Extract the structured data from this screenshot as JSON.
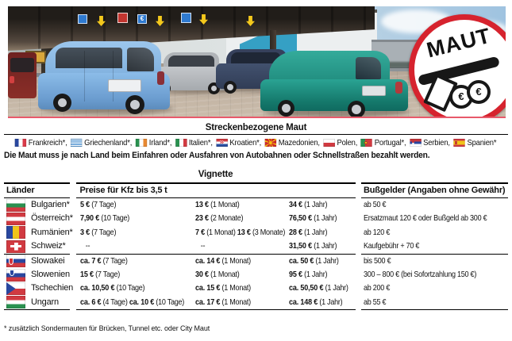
{
  "badge": {
    "label": "MAUT",
    "coin_symbol": "€"
  },
  "photo": {
    "sign_euro": "€"
  },
  "route_toll": {
    "heading": "Streckenbezogene Maut",
    "countries": [
      {
        "flag": "fr",
        "label": "Frankreich*"
      },
      {
        "flag": "gr",
        "label": "Griechenland*"
      },
      {
        "flag": "ie",
        "label": "Irland*"
      },
      {
        "flag": "it",
        "label": "Italien*"
      },
      {
        "flag": "hr",
        "label": "Kroatien*"
      },
      {
        "flag": "mk",
        "label": "Mazedonien"
      },
      {
        "flag": "pl",
        "label": "Polen"
      },
      {
        "flag": "pt",
        "label": "Portugal*"
      },
      {
        "flag": "rs",
        "label": "Serbien"
      },
      {
        "flag": "es",
        "label": "Spanien*"
      }
    ],
    "note": "Die Maut muss je nach Land beim Einfahren oder Ausfahren von Autobahnen oder Schnellstraßen bezahlt werden."
  },
  "vignette_table": {
    "heading": "Vignette",
    "columns": {
      "laender": "Länder",
      "preise": "Preise für Kfz bis 3,5 t",
      "bussgelder": "Bußgelder (Angaben ohne Gewähr)"
    },
    "groups": [
      [
        {
          "flag": "bg",
          "country": "Bulgarien*",
          "prices": [
            [
              {
                "b": "5 €",
                "r": "(7 Tage)"
              }
            ],
            [
              {
                "b": "13 €",
                "r": "(1 Monat)"
              }
            ],
            [
              {
                "b": "34 €",
                "r": "(1 Jahr)"
              }
            ]
          ],
          "fine": "ab 50 €"
        },
        {
          "flag": "at",
          "country": "Österreich*",
          "prices": [
            [
              {
                "b": "7,90 €",
                "r": "(10 Tage)"
              }
            ],
            [
              {
                "b": "23 €",
                "r": "(2 Monate)"
              }
            ],
            [
              {
                "b": "76,50 €",
                "r": "(1 Jahr)"
              }
            ]
          ],
          "fine": "Ersatzmaut 120 €  oder Bußgeld ab 300 €"
        },
        {
          "flag": "ro",
          "country": "Rumänien*",
          "prices": [
            [
              {
                "b": "3 €",
                "r": "(7 Tage)"
              }
            ],
            [
              {
                "b": "7 €",
                "r": "(1 Monat)"
              },
              {
                "b": "13 €",
                "r": "(3 Monate)"
              }
            ],
            [
              {
                "b": "28 €",
                "r": "(1 Jahr)"
              }
            ]
          ],
          "fine": "ab 120 €"
        },
        {
          "flag": "ch",
          "country": "Schweiz*",
          "prices": [
            [
              {
                "b": "",
                "r": "   --"
              }
            ],
            [
              {
                "b": "",
                "r": "   --"
              }
            ],
            [
              {
                "b": "31,50 €",
                "r": "(1 Jahr)"
              }
            ]
          ],
          "fine": "Kaufgebühr + 70 €"
        }
      ],
      [
        {
          "flag": "sk",
          "country": "Slowakei",
          "prices": [
            [
              {
                "b": "ca. 7 €",
                "r": "(7 Tage)"
              }
            ],
            [
              {
                "b": "ca. 14 €",
                "r": "(1 Monat)"
              }
            ],
            [
              {
                "b": "ca. 50 €",
                "r": "(1 Jahr)"
              }
            ]
          ],
          "fine": "bis 500 €"
        },
        {
          "flag": "si",
          "country": "Slowenien",
          "prices": [
            [
              {
                "b": "15 €",
                "r": "(7 Tage)"
              }
            ],
            [
              {
                "b": "30 €",
                "r": "(1 Monat)"
              }
            ],
            [
              {
                "b": "95 €",
                "r": "(1 Jahr)"
              }
            ]
          ],
          "fine": "300 – 800 € (bei Sofortzahlung 150 €)"
        },
        {
          "flag": "cz",
          "country": "Tschechien",
          "prices": [
            [
              {
                "b": "ca. 10,50 €",
                "r": "(10 Tage)"
              }
            ],
            [
              {
                "b": "ca. 15 €",
                "r": "(1 Monat)"
              }
            ],
            [
              {
                "b": "ca. 50,50 €",
                "r": "(1 Jahr)"
              }
            ]
          ],
          "fine": "ab 200 €"
        },
        {
          "flag": "hu",
          "country": "Ungarn",
          "prices": [
            [
              {
                "b": "ca. 6 €",
                "r": "(4 Tage)"
              },
              {
                "b": "ca. 10 €",
                "r": "(10 Tage)"
              }
            ],
            [
              {
                "b": "ca. 17 €",
                "r": "(1 Monat)"
              }
            ],
            [
              {
                "b": "ca. 148 €",
                "r": "(1 Jahr)"
              }
            ]
          ],
          "fine": "ab 55 €"
        }
      ]
    ]
  },
  "footnote": "* zusätzlich Sondermauten für Brücken, Tunnel etc. oder City Maut"
}
